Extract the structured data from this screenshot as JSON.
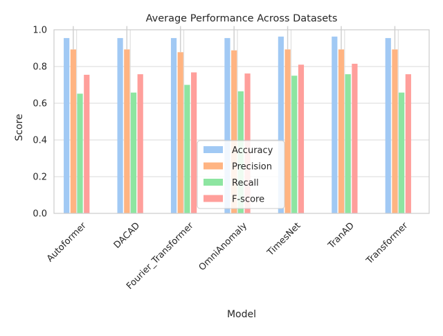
{
  "chart_data": {
    "type": "bar",
    "title": "Average Performance Across Datasets",
    "xlabel": "Model",
    "ylabel": "Score",
    "ylim": [
      0,
      1.0
    ],
    "yticks": [
      "0.0",
      "0.2",
      "0.4",
      "0.6",
      "0.8",
      "1.0"
    ],
    "categories": [
      "Autoformer",
      "DACAD",
      "Fourier_Transformer",
      "OmniAnomaly",
      "TimesNet",
      "TranAD",
      "Transformer"
    ],
    "series": [
      {
        "name": "Accuracy",
        "color": "#a1c9f4",
        "values": [
          0.955,
          0.955,
          0.955,
          0.955,
          0.963,
          0.963,
          0.955
        ]
      },
      {
        "name": "Precision",
        "color": "#ffb482",
        "values": [
          0.893,
          0.893,
          0.878,
          0.888,
          0.893,
          0.893,
          0.893
        ]
      },
      {
        "name": "Recall",
        "color": "#8de5a1",
        "values": [
          0.652,
          0.658,
          0.7,
          0.665,
          0.75,
          0.758,
          0.658
        ]
      },
      {
        "name": "F-score",
        "color": "#ff9f9b",
        "values": [
          0.755,
          0.758,
          0.768,
          0.762,
          0.81,
          0.815,
          0.758
        ]
      }
    ],
    "error_bar_tops": [
      1.02,
      1.02,
      1.02,
      1.02,
      1.02,
      1.02,
      1.02
    ],
    "grid": true,
    "legend_position": "lower-center"
  }
}
